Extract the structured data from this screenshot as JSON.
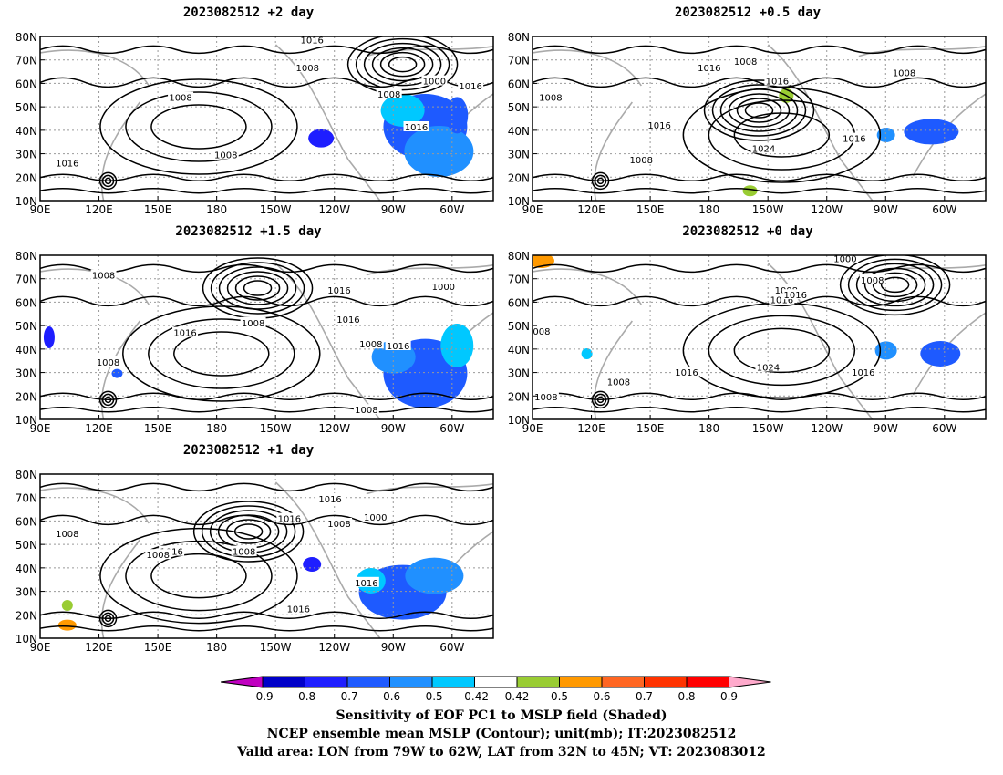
{
  "panels": [
    {
      "id": "p1",
      "title": "2023082512 +2 day",
      "contour_labels": [
        "1016",
        "1008",
        "1008",
        "1000",
        "1016",
        "1008",
        "1016",
        "1008",
        "1016"
      ]
    },
    {
      "id": "p2",
      "title": "2023082512 +0.5 day",
      "contour_labels": [
        "1016",
        "1008",
        "1016",
        "1008",
        "1024",
        "1008",
        "1016",
        "1016",
        "1008"
      ]
    },
    {
      "id": "p3",
      "title": "2023082512 +1.5 day",
      "contour_labels": [
        "1008",
        "1016",
        "1000",
        "1008",
        "1016",
        "1016",
        "1008",
        "1008",
        "1016",
        "1008"
      ]
    },
    {
      "id": "p4",
      "title": "2023082512 +0 day",
      "contour_labels": [
        "1000",
        "1008",
        "1008",
        "1016",
        "1016",
        "008",
        "1024",
        "1016",
        "1016",
        "1008",
        "1008"
      ]
    },
    {
      "id": "p5",
      "title": "2023082512 +1 day",
      "contour_labels": [
        "1016",
        "1016",
        "1008",
        "1000",
        "1008",
        "1016",
        "1008",
        "1016",
        "1016",
        "1008"
      ]
    }
  ],
  "axes": {
    "lat_labels": [
      "80N",
      "70N",
      "60N",
      "50N",
      "40N",
      "30N",
      "20N",
      "10N"
    ],
    "lon_labels": [
      "90E",
      "120E",
      "150E",
      "180",
      "150W",
      "120W",
      "90W",
      "60W"
    ]
  },
  "colorbar": {
    "ticks": [
      "-0.9",
      "-0.8",
      "-0.7",
      "-0.6",
      "-0.5",
      "-0.42",
      "0.42",
      "0.5",
      "0.6",
      "0.7",
      "0.8",
      "0.9"
    ],
    "colors": [
      "#c000c0",
      "#0000c8",
      "#1e1eff",
      "#1e5aff",
      "#2090ff",
      "#00c8ff",
      "#ffffff",
      "#99cc33",
      "#ff9900",
      "#ff6622",
      "#ff3300",
      "#ff0000",
      "#ffaacc"
    ]
  },
  "footer": {
    "line1": "Sensitivity of EOF PC1 to MSLP field (Shaded)",
    "line2": "NCEP ensemble mean MSLP (Contour); unit(mb); IT:2023082512",
    "line3": "Valid area: LON from 79W to 62W, LAT from 32N to 45N; VT: 2023083012"
  }
}
